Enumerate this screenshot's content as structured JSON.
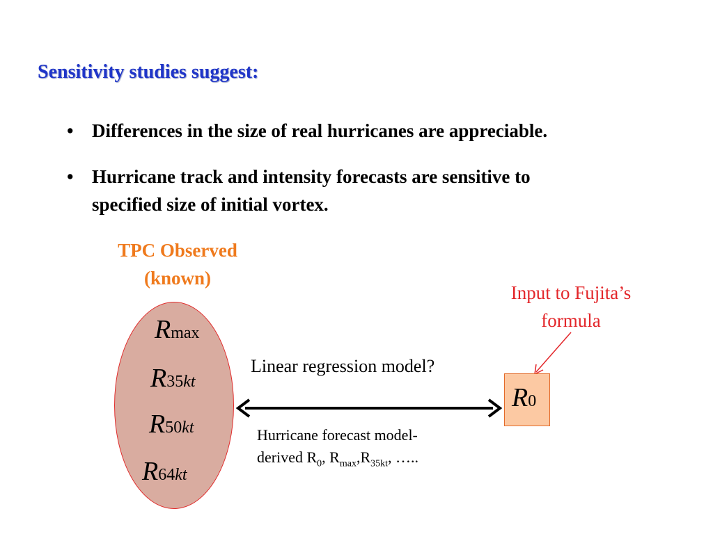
{
  "title": "Sensitivity studies suggest:",
  "bullets": [
    {
      "marker": "•",
      "lines": [
        "Differences in the size of real hurricanes are appreciable."
      ]
    },
    {
      "marker": "•",
      "lines": [
        "Hurricane track and intensity forecasts are sensitive to",
        "specified size of initial vortex."
      ]
    }
  ],
  "observed": {
    "line1": "TPC Observed",
    "line2": "(known)"
  },
  "ellipse_vars": [
    {
      "base": "R",
      "sub": "max",
      "sub_italic": ""
    },
    {
      "base": "R",
      "sub": "35",
      "sub_italic": "kt"
    },
    {
      "base": "R",
      "sub": "50",
      "sub_italic": "kt"
    },
    {
      "base": "R",
      "sub": "64",
      "sub_italic": "kt"
    }
  ],
  "fujita": {
    "line1": "Input to Fujita’s",
    "line2": "formula"
  },
  "r0": {
    "base": "R",
    "sub": "0"
  },
  "regression_label": "Linear regression model?",
  "forecast": {
    "line1": "Hurricane forecast model-",
    "line2_prefix": "derived R",
    "sub_0": "0",
    "sep1": ", R",
    "sub_max": "max",
    "sep2": ",R",
    "sub_35kt": "35kt",
    "suffix": ", ….."
  },
  "colors": {
    "title": "#1f35c8",
    "observed": "#ef7a1d",
    "fujita": "#e3262a",
    "ellipse_fill": "#d9aca0",
    "ellipse_border": "#e12c2c",
    "r0_fill": "#fcc9a3",
    "r0_border": "#e36b2a"
  }
}
